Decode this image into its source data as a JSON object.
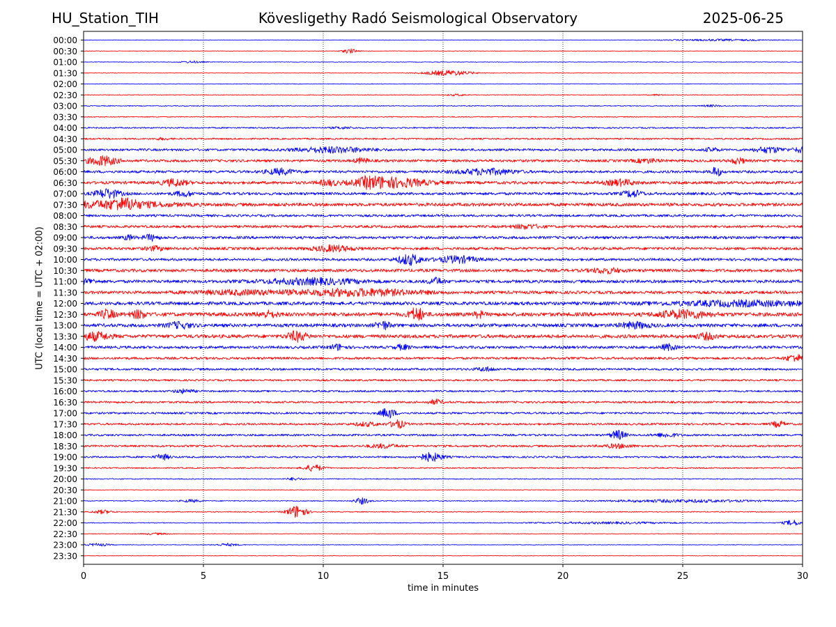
{
  "header": {
    "station": "HU_Station_TIH",
    "observatory": "Kövesligethy Radó Seismological Observatory",
    "date": "2025-06-25"
  },
  "chart_data": {
    "type": "line",
    "title": "Kövesligethy Radó Seismological Observatory",
    "xlabel": "time in minutes",
    "ylabel": "UTC (local time = UTC + 02:00)",
    "xlim": [
      0,
      30
    ],
    "x_ticks": [
      "0",
      "5",
      "10",
      "15",
      "20",
      "25",
      "30"
    ],
    "grid": "vertical dotted lines at 5-minute intervals",
    "row_colors": [
      "#0000ff",
      "#ff0000"
    ],
    "rows": [
      {
        "label": "00:00",
        "amp": 0.05,
        "events": [
          [
            26.5,
            0.2,
            2.0
          ]
        ]
      },
      {
        "label": "00:30",
        "amp": 0.05,
        "events": [
          [
            11.1,
            0.5,
            0.3
          ]
        ]
      },
      {
        "label": "01:00",
        "amp": 0.06,
        "events": [
          [
            4.5,
            0.2,
            0.5
          ]
        ]
      },
      {
        "label": "01:30",
        "amp": 0.05,
        "events": [
          [
            15.2,
            0.6,
            1.0
          ]
        ]
      },
      {
        "label": "02:00",
        "amp": 0.06,
        "events": []
      },
      {
        "label": "02:30",
        "amp": 0.07,
        "events": [
          [
            15.6,
            0.2,
            0.4
          ],
          [
            23.9,
            0.15,
            0.3
          ]
        ]
      },
      {
        "label": "03:00",
        "amp": 0.09,
        "events": [
          [
            26.2,
            0.2,
            0.4
          ]
        ]
      },
      {
        "label": "03:30",
        "amp": 0.1,
        "events": []
      },
      {
        "label": "04:00",
        "amp": 0.15,
        "events": [
          [
            10.8,
            0.2,
            0.5
          ]
        ]
      },
      {
        "label": "04:30",
        "amp": 0.17,
        "events": [
          [
            3.3,
            0.2,
            0.3
          ]
        ]
      },
      {
        "label": "05:00",
        "amp": 0.25,
        "events": [
          [
            10.4,
            0.6,
            1.5
          ],
          [
            26.2,
            0.4,
            0.3
          ],
          [
            28.6,
            0.6,
            0.6
          ],
          [
            29.9,
            0.5,
            0.3
          ]
        ]
      },
      {
        "label": "05:30",
        "amp": 0.28,
        "events": [
          [
            0.8,
            1.0,
            0.6
          ],
          [
            11.6,
            0.5,
            0.3
          ],
          [
            27.3,
            0.6,
            0.3
          ],
          [
            23.5,
            0.4,
            0.5
          ]
        ]
      },
      {
        "label": "06:00",
        "amp": 0.28,
        "events": [
          [
            8.2,
            0.6,
            0.6
          ],
          [
            16.8,
            0.6,
            1.2
          ],
          [
            26.4,
            1.0,
            0.2
          ]
        ]
      },
      {
        "label": "06:30",
        "amp": 0.32,
        "events": [
          [
            3.8,
            0.7,
            0.5
          ],
          [
            12.0,
            1.0,
            0.4
          ],
          [
            12.8,
            1.0,
            1.5
          ],
          [
            22.4,
            0.6,
            0.6
          ],
          [
            10.2,
            0.5,
            0.4
          ]
        ]
      },
      {
        "label": "07:00",
        "amp": 0.3,
        "events": [
          [
            1.0,
            1.0,
            0.5
          ],
          [
            22.9,
            0.7,
            0.4
          ],
          [
            4.2,
            0.5,
            0.4
          ]
        ]
      },
      {
        "label": "07:30",
        "amp": 0.36,
        "events": [
          [
            1.2,
            0.7,
            2.2
          ],
          [
            1.7,
            1.2,
            0.4
          ]
        ]
      },
      {
        "label": "08:00",
        "amp": 0.26,
        "events": []
      },
      {
        "label": "08:30",
        "amp": 0.28,
        "events": [
          [
            18.5,
            0.4,
            0.6
          ]
        ]
      },
      {
        "label": "09:00",
        "amp": 0.3,
        "events": [
          [
            2.8,
            0.6,
            0.3
          ],
          [
            1.9,
            0.5,
            0.2
          ]
        ]
      },
      {
        "label": "09:30",
        "amp": 0.3,
        "events": [
          [
            10.4,
            0.6,
            0.8
          ],
          [
            3.0,
            0.4,
            0.4
          ]
        ]
      },
      {
        "label": "10:00",
        "amp": 0.28,
        "events": [
          [
            13.6,
            1.1,
            0.5
          ],
          [
            15.6,
            0.7,
            0.8
          ]
        ]
      },
      {
        "label": "10:30",
        "amp": 0.33,
        "events": [
          [
            21.8,
            0.5,
            0.6
          ]
        ]
      },
      {
        "label": "11:00",
        "amp": 0.33,
        "events": [
          [
            9.5,
            0.6,
            2.0
          ],
          [
            14.7,
            0.7,
            0.3
          ],
          [
            0.2,
            0.5,
            0.3
          ]
        ]
      },
      {
        "label": "11:30",
        "amp": 0.32,
        "events": [
          [
            11.4,
            0.7,
            2.6
          ],
          [
            6.5,
            0.4,
            2.0
          ]
        ]
      },
      {
        "label": "12:00",
        "amp": 0.37,
        "events": [
          [
            27.5,
            0.5,
            3.0
          ]
        ]
      },
      {
        "label": "12:30",
        "amp": 0.42,
        "events": [
          [
            1.0,
            0.9,
            0.3
          ],
          [
            2.3,
            0.8,
            0.3
          ],
          [
            7.7,
            0.6,
            0.4
          ],
          [
            13.9,
            1.4,
            0.3
          ],
          [
            25.0,
            0.8,
            1.0
          ],
          [
            16.5,
            0.6,
            0.2
          ]
        ]
      },
      {
        "label": "13:00",
        "amp": 0.37,
        "events": [
          [
            12.5,
            0.8,
            0.3
          ],
          [
            23.0,
            0.6,
            0.6
          ],
          [
            4.0,
            0.6,
            0.5
          ]
        ]
      },
      {
        "label": "13:30",
        "amp": 0.38,
        "events": [
          [
            0.5,
            0.8,
            0.6
          ],
          [
            8.9,
            1.0,
            0.4
          ],
          [
            26.0,
            0.6,
            0.4
          ]
        ]
      },
      {
        "label": "14:00",
        "amp": 0.3,
        "events": [
          [
            10.6,
            0.6,
            0.3
          ],
          [
            13.3,
            0.5,
            0.3
          ],
          [
            24.4,
            0.6,
            0.3
          ]
        ]
      },
      {
        "label": "14:30",
        "amp": 0.26,
        "events": [
          [
            29.7,
            0.7,
            0.4
          ]
        ]
      },
      {
        "label": "15:00",
        "amp": 0.24,
        "events": [
          [
            16.8,
            0.4,
            0.4
          ]
        ]
      },
      {
        "label": "15:30",
        "amp": 0.2,
        "events": []
      },
      {
        "label": "16:00",
        "amp": 0.2,
        "events": [
          [
            4.2,
            0.4,
            0.4
          ]
        ]
      },
      {
        "label": "16:30",
        "amp": 0.22,
        "events": [
          [
            14.7,
            0.5,
            0.3
          ]
        ]
      },
      {
        "label": "17:00",
        "amp": 0.22,
        "events": [
          [
            12.7,
            1.1,
            0.3
          ]
        ]
      },
      {
        "label": "17:30",
        "amp": 0.22,
        "events": [
          [
            13.1,
            0.9,
            0.3
          ],
          [
            29.0,
            0.6,
            0.3
          ],
          [
            11.8,
            0.4,
            0.5
          ]
        ]
      },
      {
        "label": "18:00",
        "amp": 0.22,
        "events": [
          [
            22.3,
            1.0,
            0.3
          ],
          [
            24.3,
            0.4,
            0.5
          ]
        ]
      },
      {
        "label": "18:30",
        "amp": 0.22,
        "events": [
          [
            12.5,
            0.4,
            0.6
          ],
          [
            22.3,
            0.4,
            0.6
          ]
        ]
      },
      {
        "label": "19:00",
        "amp": 0.2,
        "events": [
          [
            3.3,
            0.6,
            0.3
          ],
          [
            14.5,
            0.9,
            0.5
          ]
        ]
      },
      {
        "label": "19:30",
        "amp": 0.13,
        "events": [
          [
            9.6,
            0.7,
            0.4
          ]
        ]
      },
      {
        "label": "20:00",
        "amp": 0.1,
        "events": [
          [
            8.8,
            0.3,
            0.3
          ]
        ]
      },
      {
        "label": "20:30",
        "amp": 0.06,
        "events": []
      },
      {
        "label": "21:00",
        "amp": 0.1,
        "events": [
          [
            4.5,
            0.3,
            0.4
          ],
          [
            11.6,
            0.7,
            0.3
          ],
          [
            25.0,
            0.3,
            3.0
          ]
        ]
      },
      {
        "label": "21:30",
        "amp": 0.1,
        "events": [
          [
            8.9,
            1.4,
            0.4
          ],
          [
            0.8,
            0.4,
            0.4
          ]
        ]
      },
      {
        "label": "22:00",
        "amp": 0.08,
        "events": [
          [
            29.6,
            0.6,
            0.4
          ],
          [
            22.0,
            0.2,
            3.0
          ]
        ]
      },
      {
        "label": "22:30",
        "amp": 0.06,
        "events": [
          [
            3.0,
            0.2,
            0.6
          ]
        ]
      },
      {
        "label": "23:00",
        "amp": 0.06,
        "events": [
          [
            6.0,
            0.3,
            0.5
          ],
          [
            0.6,
            0.3,
            0.5
          ]
        ]
      },
      {
        "label": "23:30",
        "amp": 0.05,
        "events": []
      }
    ]
  }
}
